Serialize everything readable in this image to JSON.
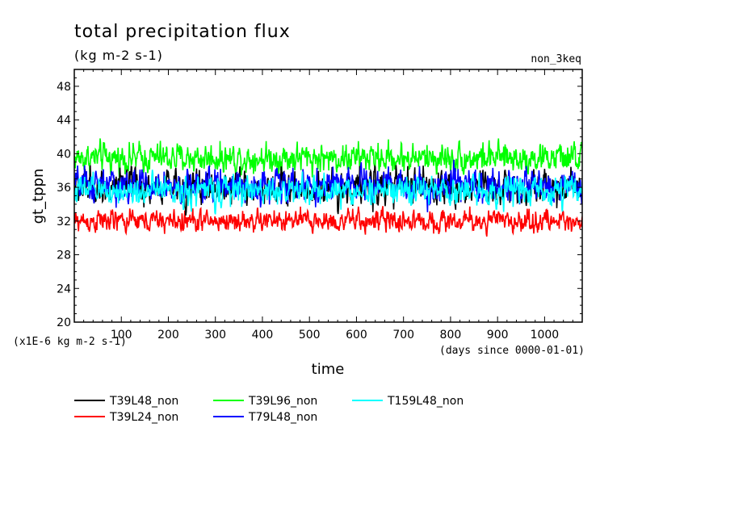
{
  "chart_data": {
    "type": "line",
    "title": "total precipitation flux",
    "subtitle": "(kg m-2 s-1)",
    "top_right_label": "non_3keq",
    "ylabel": "gt_tppn",
    "xlabel": "time",
    "x_unit_label": "(days since 0000-01-01)",
    "y_unit_label": "(x1E-6 kg m-2 s-1)",
    "xlim": [
      0,
      1080
    ],
    "ylim": [
      20,
      50
    ],
    "x_ticks": [
      100,
      200,
      300,
      400,
      500,
      600,
      700,
      800,
      900,
      1000
    ],
    "x_tick_labels": [
      "100",
      "200",
      "300",
      "400",
      "500",
      "600",
      "700",
      "800",
      "900",
      "1000"
    ],
    "y_ticks": [
      20,
      24,
      28,
      32,
      36,
      40,
      44,
      48
    ],
    "y_tick_labels": [
      "20",
      "24",
      "28",
      "32",
      "36",
      "40",
      "44",
      "48"
    ],
    "grid": false,
    "legend_position": "bottom-left",
    "series": [
      {
        "name": "T39L48_non",
        "color": "#000000",
        "mean": 36.0,
        "amplitude": 2.4,
        "min": 32.0,
        "max": 40.5
      },
      {
        "name": "T39L96_non",
        "color": "#00ff00",
        "mean": 39.5,
        "amplitude": 2.0,
        "min": 36.0,
        "max": 44.8
      },
      {
        "name": "T159L48_non",
        "color": "#00ffff",
        "mean": 35.6,
        "amplitude": 2.0,
        "min": 32.0,
        "max": 40.0
      },
      {
        "name": "T39L24_non",
        "color": "#ff0000",
        "mean": 32.0,
        "amplitude": 1.5,
        "min": 28.5,
        "max": 35.5
      },
      {
        "name": "T79L48_non",
        "color": "#0000ff",
        "mean": 36.2,
        "amplitude": 2.2,
        "min": 32.0,
        "max": 40.5
      }
    ]
  }
}
